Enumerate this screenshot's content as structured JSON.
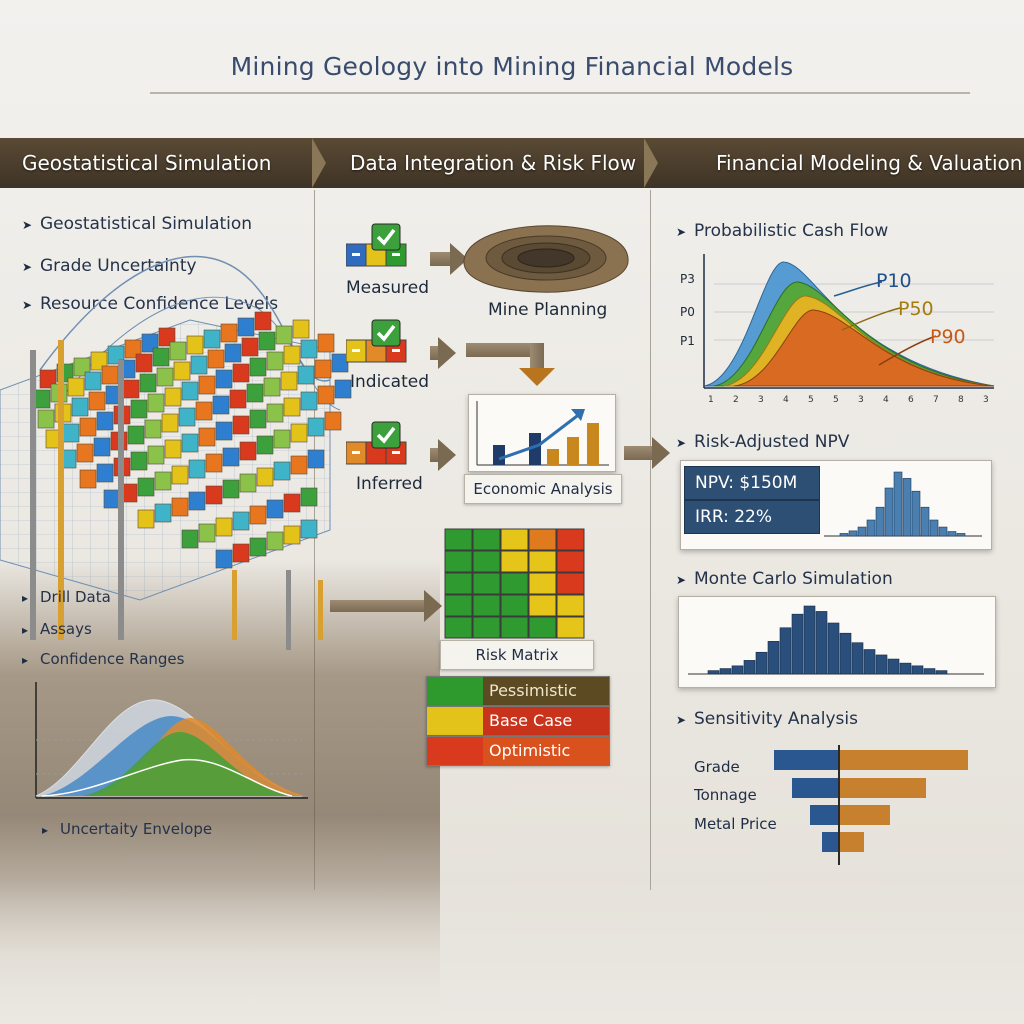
{
  "title": "Mining Geology into Mining Financial Models",
  "columns": [
    {
      "header": "Geostatistical Simulation"
    },
    {
      "header": "Data Integration & Risk Flow"
    },
    {
      "header": "Financial Modeling & Valuation"
    }
  ],
  "left": {
    "bullets": [
      "Geostatistical Simulation",
      "Grade Uncertainty",
      "Resource Confidence Levels"
    ],
    "drill_labels": [
      "Drill Data",
      "Assays",
      "Confidence Ranges"
    ],
    "uncertainty_label": "Uncertaity Envelope"
  },
  "middle": {
    "confidence": [
      "Measured",
      "Indicated",
      "Inferred"
    ],
    "mine_planning": "Mine Planning",
    "economic_analysis": "Economic Analysis",
    "risk_matrix": "Risk Matrix",
    "scenarios": [
      "Pessimistic",
      "Base Case",
      "Optimistic"
    ]
  },
  "right": {
    "cashflow": {
      "title": "Probabilistic Cash Flow",
      "y_ticks": [
        "P3",
        "P0",
        "P1"
      ],
      "x_ticks": [
        "1",
        "2",
        "3",
        "4",
        "5",
        "5",
        "3",
        "4",
        "6",
        "7",
        "8",
        "3"
      ],
      "curve_labels": [
        "P10",
        "P50",
        "P90"
      ]
    },
    "npv": {
      "title": "Risk-Adjusted NPV",
      "npv": "NPV: $150M",
      "irr": "IRR: 22%"
    },
    "monte_carlo": {
      "title": "Monte Carlo Simulation"
    },
    "sensitivity": {
      "title": "Sensitivity Analysis",
      "labels": [
        "Grade",
        "Tonnage",
        "Metal Price"
      ]
    }
  },
  "colors": {
    "header_band": "#4b3d2c",
    "navy": "#2e4f74",
    "orange": "#d9761f",
    "green": "#2f9a2f",
    "yellow": "#e6c51a",
    "red": "#d93a1e"
  }
}
